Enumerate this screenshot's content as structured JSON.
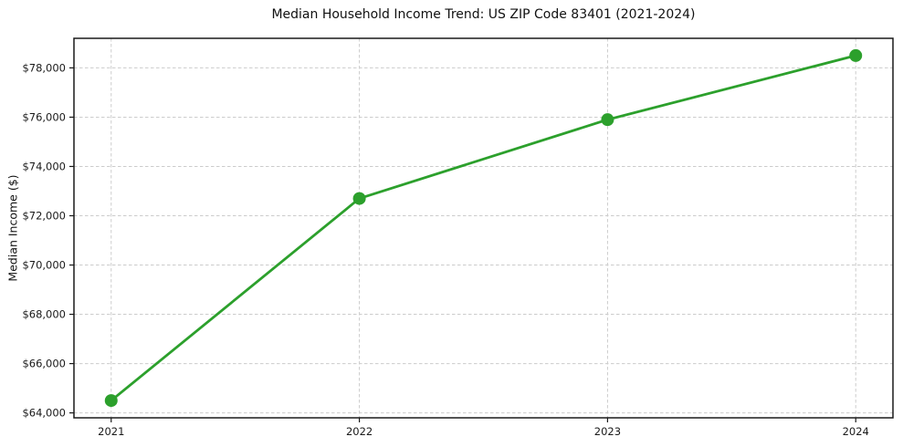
{
  "chart_data": {
    "type": "line",
    "title": "Median Household Income Trend: US ZIP Code 83401 (2021-2024)",
    "xlabel": "",
    "ylabel": "Median Income ($)",
    "categories": [
      "2021",
      "2022",
      "2023",
      "2024"
    ],
    "values": [
      64500,
      72700,
      75900,
      78500
    ],
    "ylim": [
      63800,
      79200
    ],
    "xlim_index": [
      -0.15,
      3.15
    ],
    "yticks": {
      "values": [
        64000,
        66000,
        68000,
        70000,
        72000,
        74000,
        76000,
        78000
      ],
      "labels": [
        "$64,000",
        "$66,000",
        "$68,000",
        "$70,000",
        "$72,000",
        "$74,000",
        "$76,000",
        "$78,000"
      ]
    },
    "grid": "dashed",
    "legend": "none",
    "line_color": "#2ca02c",
    "marker": "circle",
    "marker_radius": 7
  }
}
